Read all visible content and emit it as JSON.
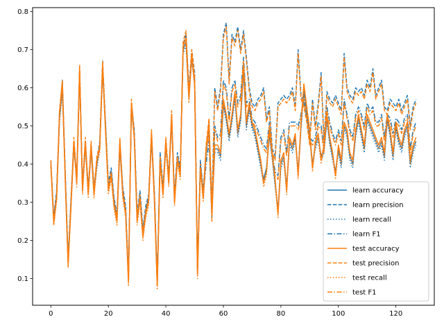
{
  "chart_data": {
    "type": "line",
    "title": "",
    "xlabel": "",
    "ylabel": "",
    "xlim": [
      -6.35,
      133.35
    ],
    "ylim": [
      0.03,
      0.81
    ],
    "xticks": [
      0,
      20,
      40,
      60,
      80,
      100,
      120
    ],
    "yticks": [
      0.1,
      0.2,
      0.3,
      0.4,
      0.5,
      0.6,
      0.7,
      0.8
    ],
    "grid": false,
    "legend_position": "lower-right",
    "colors": {
      "learn": "#1f77b4",
      "test": "#ff7f0e"
    },
    "x": [
      0,
      1,
      2,
      3,
      4,
      5,
      6,
      7,
      8,
      9,
      10,
      11,
      12,
      13,
      14,
      15,
      16,
      17,
      18,
      19,
      20,
      21,
      22,
      23,
      24,
      25,
      26,
      27,
      28,
      29,
      30,
      31,
      32,
      33,
      34,
      35,
      36,
      37,
      38,
      39,
      40,
      41,
      42,
      43,
      44,
      45,
      46,
      47,
      48,
      49,
      50,
      51,
      52,
      53,
      54,
      55,
      56,
      57,
      58,
      59,
      60,
      61,
      62,
      63,
      64,
      65,
      66,
      67,
      68,
      69,
      70,
      71,
      72,
      73,
      74,
      75,
      76,
      77,
      78,
      79,
      80,
      81,
      82,
      83,
      84,
      85,
      86,
      87,
      88,
      89,
      90,
      91,
      92,
      93,
      94,
      95,
      96,
      97,
      98,
      99,
      100,
      101,
      102,
      103,
      104,
      105,
      106,
      107,
      108,
      109,
      110,
      111,
      112,
      113,
      114,
      115,
      116,
      117,
      118,
      119,
      120,
      121,
      122,
      123,
      124,
      125,
      126,
      127
    ],
    "series": [
      {
        "name": "learn accuracy",
        "group": "learn",
        "style": "solid",
        "values": [
          0.4,
          0.26,
          0.32,
          0.52,
          0.6,
          0.37,
          0.15,
          0.3,
          0.45,
          0.36,
          0.64,
          0.34,
          0.45,
          0.33,
          0.44,
          0.33,
          0.4,
          0.45,
          0.65,
          0.5,
          0.34,
          0.38,
          0.3,
          0.26,
          0.45,
          0.33,
          0.28,
          0.1,
          0.55,
          0.48,
          0.26,
          0.32,
          0.22,
          0.28,
          0.31,
          0.47,
          0.32,
          0.09,
          0.42,
          0.33,
          0.45,
          0.36,
          0.52,
          0.31,
          0.42,
          0.38,
          0.7,
          0.72,
          0.58,
          0.68,
          0.62,
          0.12,
          0.4,
          0.32,
          0.43,
          0.5,
          0.28,
          0.44,
          0.44,
          0.42,
          0.56,
          0.52,
          0.47,
          0.52,
          0.58,
          0.48,
          0.52,
          0.65,
          0.5,
          0.55,
          0.5,
          0.48,
          0.44,
          0.4,
          0.36,
          0.39,
          0.48,
          0.42,
          0.35,
          0.28,
          0.4,
          0.42,
          0.34,
          0.46,
          0.44,
          0.47,
          0.38,
          0.5,
          0.6,
          0.54,
          0.48,
          0.4,
          0.45,
          0.47,
          0.42,
          0.44,
          0.52,
          0.46,
          0.42,
          0.38,
          0.44,
          0.4,
          0.5,
          0.48,
          0.42,
          0.4,
          0.48,
          0.52,
          0.48,
          0.44,
          0.52,
          0.5,
          0.48,
          0.46,
          0.44,
          0.46,
          0.42,
          0.52,
          0.48,
          0.42,
          0.5,
          0.46,
          0.44,
          0.48,
          0.5,
          0.4,
          0.44,
          0.46
        ]
      },
      {
        "name": "learn precision",
        "group": "learn",
        "style": "dashed",
        "values": [
          0.41,
          0.26,
          0.33,
          0.53,
          0.62,
          0.38,
          0.15,
          0.31,
          0.46,
          0.37,
          0.65,
          0.35,
          0.46,
          0.34,
          0.45,
          0.34,
          0.41,
          0.46,
          0.67,
          0.51,
          0.35,
          0.39,
          0.31,
          0.27,
          0.46,
          0.34,
          0.29,
          0.11,
          0.56,
          0.49,
          0.27,
          0.33,
          0.23,
          0.29,
          0.32,
          0.48,
          0.33,
          0.1,
          0.43,
          0.34,
          0.46,
          0.37,
          0.53,
          0.32,
          0.43,
          0.39,
          0.71,
          0.74,
          0.6,
          0.7,
          0.64,
          0.13,
          0.41,
          0.33,
          0.44,
          0.51,
          0.29,
          0.6,
          0.55,
          0.6,
          0.74,
          0.77,
          0.62,
          0.74,
          0.72,
          0.76,
          0.7,
          0.75,
          0.68,
          0.6,
          0.56,
          0.55,
          0.57,
          0.58,
          0.6,
          0.52,
          0.55,
          0.44,
          0.42,
          0.56,
          0.57,
          0.58,
          0.57,
          0.58,
          0.6,
          0.55,
          0.7,
          0.58,
          0.56,
          0.52,
          0.46,
          0.57,
          0.5,
          0.56,
          0.64,
          0.46,
          0.59,
          0.57,
          0.56,
          0.58,
          0.56,
          0.54,
          0.69,
          0.6,
          0.58,
          0.57,
          0.6,
          0.59,
          0.6,
          0.58,
          0.62,
          0.6,
          0.65,
          0.58,
          0.6,
          0.62,
          0.55,
          0.54,
          0.57,
          0.56,
          0.55,
          0.57,
          0.54,
          0.56,
          0.58,
          0.5,
          0.55,
          0.57
        ]
      },
      {
        "name": "learn recall",
        "group": "learn",
        "style": "dotted",
        "values": [
          0.39,
          0.25,
          0.31,
          0.51,
          0.59,
          0.36,
          0.14,
          0.29,
          0.44,
          0.35,
          0.63,
          0.33,
          0.44,
          0.32,
          0.43,
          0.32,
          0.39,
          0.44,
          0.64,
          0.49,
          0.33,
          0.37,
          0.29,
          0.25,
          0.44,
          0.32,
          0.27,
          0.09,
          0.54,
          0.47,
          0.25,
          0.31,
          0.21,
          0.27,
          0.3,
          0.46,
          0.31,
          0.08,
          0.41,
          0.32,
          0.44,
          0.35,
          0.51,
          0.3,
          0.41,
          0.37,
          0.69,
          0.71,
          0.57,
          0.67,
          0.61,
          0.11,
          0.39,
          0.31,
          0.42,
          0.49,
          0.27,
          0.43,
          0.43,
          0.41,
          0.55,
          0.51,
          0.46,
          0.51,
          0.57,
          0.47,
          0.51,
          0.64,
          0.49,
          0.54,
          0.49,
          0.47,
          0.43,
          0.39,
          0.35,
          0.38,
          0.47,
          0.41,
          0.34,
          0.27,
          0.39,
          0.41,
          0.33,
          0.45,
          0.43,
          0.46,
          0.37,
          0.49,
          0.59,
          0.53,
          0.47,
          0.39,
          0.44,
          0.46,
          0.41,
          0.43,
          0.51,
          0.45,
          0.41,
          0.37,
          0.43,
          0.39,
          0.49,
          0.47,
          0.41,
          0.39,
          0.47,
          0.51,
          0.47,
          0.43,
          0.51,
          0.49,
          0.47,
          0.45,
          0.43,
          0.45,
          0.41,
          0.51,
          0.47,
          0.41,
          0.49,
          0.45,
          0.43,
          0.47,
          0.49,
          0.39,
          0.43,
          0.45
        ]
      },
      {
        "name": "learn F1",
        "group": "learn",
        "style": "dashdot",
        "values": [
          0.4,
          0.25,
          0.32,
          0.52,
          0.6,
          0.37,
          0.14,
          0.3,
          0.45,
          0.36,
          0.64,
          0.34,
          0.45,
          0.33,
          0.44,
          0.33,
          0.4,
          0.45,
          0.65,
          0.5,
          0.34,
          0.38,
          0.3,
          0.26,
          0.45,
          0.33,
          0.28,
          0.1,
          0.55,
          0.48,
          0.26,
          0.32,
          0.22,
          0.28,
          0.31,
          0.47,
          0.32,
          0.09,
          0.42,
          0.33,
          0.45,
          0.36,
          0.52,
          0.31,
          0.42,
          0.38,
          0.7,
          0.72,
          0.58,
          0.68,
          0.62,
          0.12,
          0.4,
          0.32,
          0.4,
          0.46,
          0.26,
          0.5,
          0.47,
          0.48,
          0.62,
          0.6,
          0.52,
          0.6,
          0.62,
          0.56,
          0.58,
          0.68,
          0.56,
          0.57,
          0.52,
          0.51,
          0.49,
          0.47,
          0.45,
          0.44,
          0.51,
          0.43,
          0.38,
          0.37,
          0.47,
          0.49,
          0.43,
          0.51,
          0.51,
          0.51,
          0.5,
          0.53,
          0.58,
          0.53,
          0.47,
          0.46,
          0.47,
          0.51,
          0.5,
          0.44,
          0.55,
          0.51,
          0.48,
          0.46,
          0.49,
          0.46,
          0.57,
          0.53,
          0.49,
          0.47,
          0.53,
          0.55,
          0.53,
          0.5,
          0.56,
          0.54,
          0.55,
          0.51,
          0.51,
          0.53,
          0.47,
          0.53,
          0.52,
          0.48,
          0.52,
          0.51,
          0.49,
          0.52,
          0.53,
          0.44,
          0.49,
          0.51
        ]
      },
      {
        "name": "test accuracy",
        "group": "test",
        "style": "solid",
        "values": [
          0.4,
          0.25,
          0.31,
          0.53,
          0.61,
          0.36,
          0.14,
          0.29,
          0.46,
          0.35,
          0.65,
          0.33,
          0.46,
          0.32,
          0.45,
          0.32,
          0.41,
          0.44,
          0.66,
          0.49,
          0.33,
          0.37,
          0.29,
          0.25,
          0.46,
          0.32,
          0.27,
          0.09,
          0.56,
          0.47,
          0.25,
          0.31,
          0.21,
          0.27,
          0.3,
          0.48,
          0.31,
          0.08,
          0.41,
          0.32,
          0.46,
          0.35,
          0.53,
          0.3,
          0.41,
          0.37,
          0.71,
          0.73,
          0.57,
          0.69,
          0.61,
          0.11,
          0.39,
          0.31,
          0.44,
          0.51,
          0.27,
          0.45,
          0.45,
          0.43,
          0.57,
          0.53,
          0.48,
          0.53,
          0.59,
          0.49,
          0.53,
          0.66,
          0.51,
          0.56,
          0.51,
          0.49,
          0.45,
          0.41,
          0.35,
          0.38,
          0.49,
          0.43,
          0.36,
          0.27,
          0.41,
          0.43,
          0.33,
          0.47,
          0.45,
          0.48,
          0.37,
          0.51,
          0.61,
          0.55,
          0.49,
          0.39,
          0.46,
          0.48,
          0.41,
          0.45,
          0.53,
          0.47,
          0.43,
          0.37,
          0.45,
          0.41,
          0.51,
          0.49,
          0.43,
          0.41,
          0.49,
          0.53,
          0.49,
          0.45,
          0.53,
          0.51,
          0.49,
          0.47,
          0.45,
          0.47,
          0.43,
          0.53,
          0.49,
          0.43,
          0.51,
          0.47,
          0.45,
          0.49,
          0.51,
          0.41,
          0.45,
          0.47
        ]
      },
      {
        "name": "test precision",
        "group": "test",
        "style": "dashed",
        "values": [
          0.41,
          0.25,
          0.32,
          0.54,
          0.62,
          0.37,
          0.14,
          0.3,
          0.47,
          0.36,
          0.66,
          0.34,
          0.47,
          0.33,
          0.46,
          0.33,
          0.42,
          0.45,
          0.67,
          0.5,
          0.34,
          0.38,
          0.3,
          0.26,
          0.47,
          0.33,
          0.28,
          0.1,
          0.57,
          0.48,
          0.26,
          0.32,
          0.22,
          0.28,
          0.31,
          0.49,
          0.32,
          0.09,
          0.42,
          0.33,
          0.47,
          0.36,
          0.54,
          0.31,
          0.42,
          0.38,
          0.72,
          0.75,
          0.59,
          0.7,
          0.63,
          0.12,
          0.4,
          0.32,
          0.45,
          0.52,
          0.28,
          0.59,
          0.54,
          0.59,
          0.73,
          0.76,
          0.61,
          0.73,
          0.71,
          0.75,
          0.69,
          0.74,
          0.67,
          0.59,
          0.55,
          0.54,
          0.56,
          0.57,
          0.59,
          0.51,
          0.54,
          0.43,
          0.41,
          0.55,
          0.56,
          0.57,
          0.56,
          0.57,
          0.59,
          0.54,
          0.69,
          0.57,
          0.55,
          0.51,
          0.45,
          0.56,
          0.49,
          0.55,
          0.63,
          0.45,
          0.58,
          0.56,
          0.55,
          0.57,
          0.55,
          0.53,
          0.68,
          0.59,
          0.57,
          0.56,
          0.59,
          0.58,
          0.59,
          0.57,
          0.61,
          0.59,
          0.64,
          0.57,
          0.59,
          0.61,
          0.54,
          0.53,
          0.56,
          0.55,
          0.54,
          0.56,
          0.53,
          0.55,
          0.57,
          0.49,
          0.54,
          0.56
        ]
      },
      {
        "name": "test recall",
        "group": "test",
        "style": "dotted",
        "values": [
          0.39,
          0.24,
          0.3,
          0.52,
          0.6,
          0.35,
          0.13,
          0.28,
          0.45,
          0.34,
          0.64,
          0.32,
          0.45,
          0.31,
          0.44,
          0.31,
          0.4,
          0.43,
          0.65,
          0.48,
          0.32,
          0.36,
          0.28,
          0.24,
          0.45,
          0.31,
          0.26,
          0.08,
          0.55,
          0.46,
          0.24,
          0.3,
          0.2,
          0.26,
          0.29,
          0.47,
          0.3,
          0.07,
          0.4,
          0.31,
          0.45,
          0.34,
          0.52,
          0.29,
          0.4,
          0.36,
          0.7,
          0.72,
          0.56,
          0.68,
          0.6,
          0.1,
          0.38,
          0.3,
          0.43,
          0.5,
          0.26,
          0.44,
          0.44,
          0.42,
          0.56,
          0.52,
          0.47,
          0.52,
          0.58,
          0.48,
          0.52,
          0.65,
          0.5,
          0.55,
          0.5,
          0.48,
          0.44,
          0.4,
          0.34,
          0.37,
          0.48,
          0.42,
          0.35,
          0.26,
          0.4,
          0.42,
          0.32,
          0.46,
          0.44,
          0.47,
          0.36,
          0.5,
          0.6,
          0.54,
          0.48,
          0.38,
          0.45,
          0.47,
          0.4,
          0.44,
          0.52,
          0.46,
          0.42,
          0.36,
          0.44,
          0.4,
          0.5,
          0.48,
          0.42,
          0.4,
          0.48,
          0.52,
          0.48,
          0.44,
          0.52,
          0.5,
          0.48,
          0.46,
          0.44,
          0.46,
          0.42,
          0.52,
          0.48,
          0.42,
          0.5,
          0.46,
          0.44,
          0.48,
          0.5,
          0.4,
          0.44,
          0.46
        ]
      },
      {
        "name": "test F1",
        "group": "test",
        "style": "dashdot",
        "values": [
          0.4,
          0.24,
          0.31,
          0.53,
          0.61,
          0.36,
          0.13,
          0.29,
          0.46,
          0.35,
          0.65,
          0.33,
          0.46,
          0.32,
          0.45,
          0.32,
          0.41,
          0.44,
          0.66,
          0.49,
          0.33,
          0.37,
          0.29,
          0.25,
          0.46,
          0.32,
          0.27,
          0.09,
          0.56,
          0.47,
          0.25,
          0.31,
          0.21,
          0.27,
          0.3,
          0.48,
          0.31,
          0.08,
          0.41,
          0.32,
          0.46,
          0.35,
          0.53,
          0.3,
          0.41,
          0.37,
          0.71,
          0.73,
          0.57,
          0.69,
          0.61,
          0.11,
          0.39,
          0.31,
          0.43,
          0.48,
          0.25,
          0.49,
          0.46,
          0.47,
          0.61,
          0.59,
          0.51,
          0.59,
          0.61,
          0.55,
          0.57,
          0.67,
          0.55,
          0.56,
          0.51,
          0.5,
          0.48,
          0.46,
          0.44,
          0.43,
          0.5,
          0.42,
          0.37,
          0.36,
          0.46,
          0.48,
          0.42,
          0.5,
          0.5,
          0.5,
          0.49,
          0.52,
          0.57,
          0.52,
          0.46,
          0.45,
          0.46,
          0.5,
          0.49,
          0.43,
          0.54,
          0.5,
          0.47,
          0.45,
          0.48,
          0.45,
          0.56,
          0.52,
          0.48,
          0.46,
          0.52,
          0.54,
          0.52,
          0.49,
          0.55,
          0.53,
          0.54,
          0.5,
          0.5,
          0.52,
          0.46,
          0.52,
          0.51,
          0.47,
          0.51,
          0.5,
          0.48,
          0.51,
          0.52,
          0.43,
          0.48,
          0.5
        ]
      }
    ]
  }
}
